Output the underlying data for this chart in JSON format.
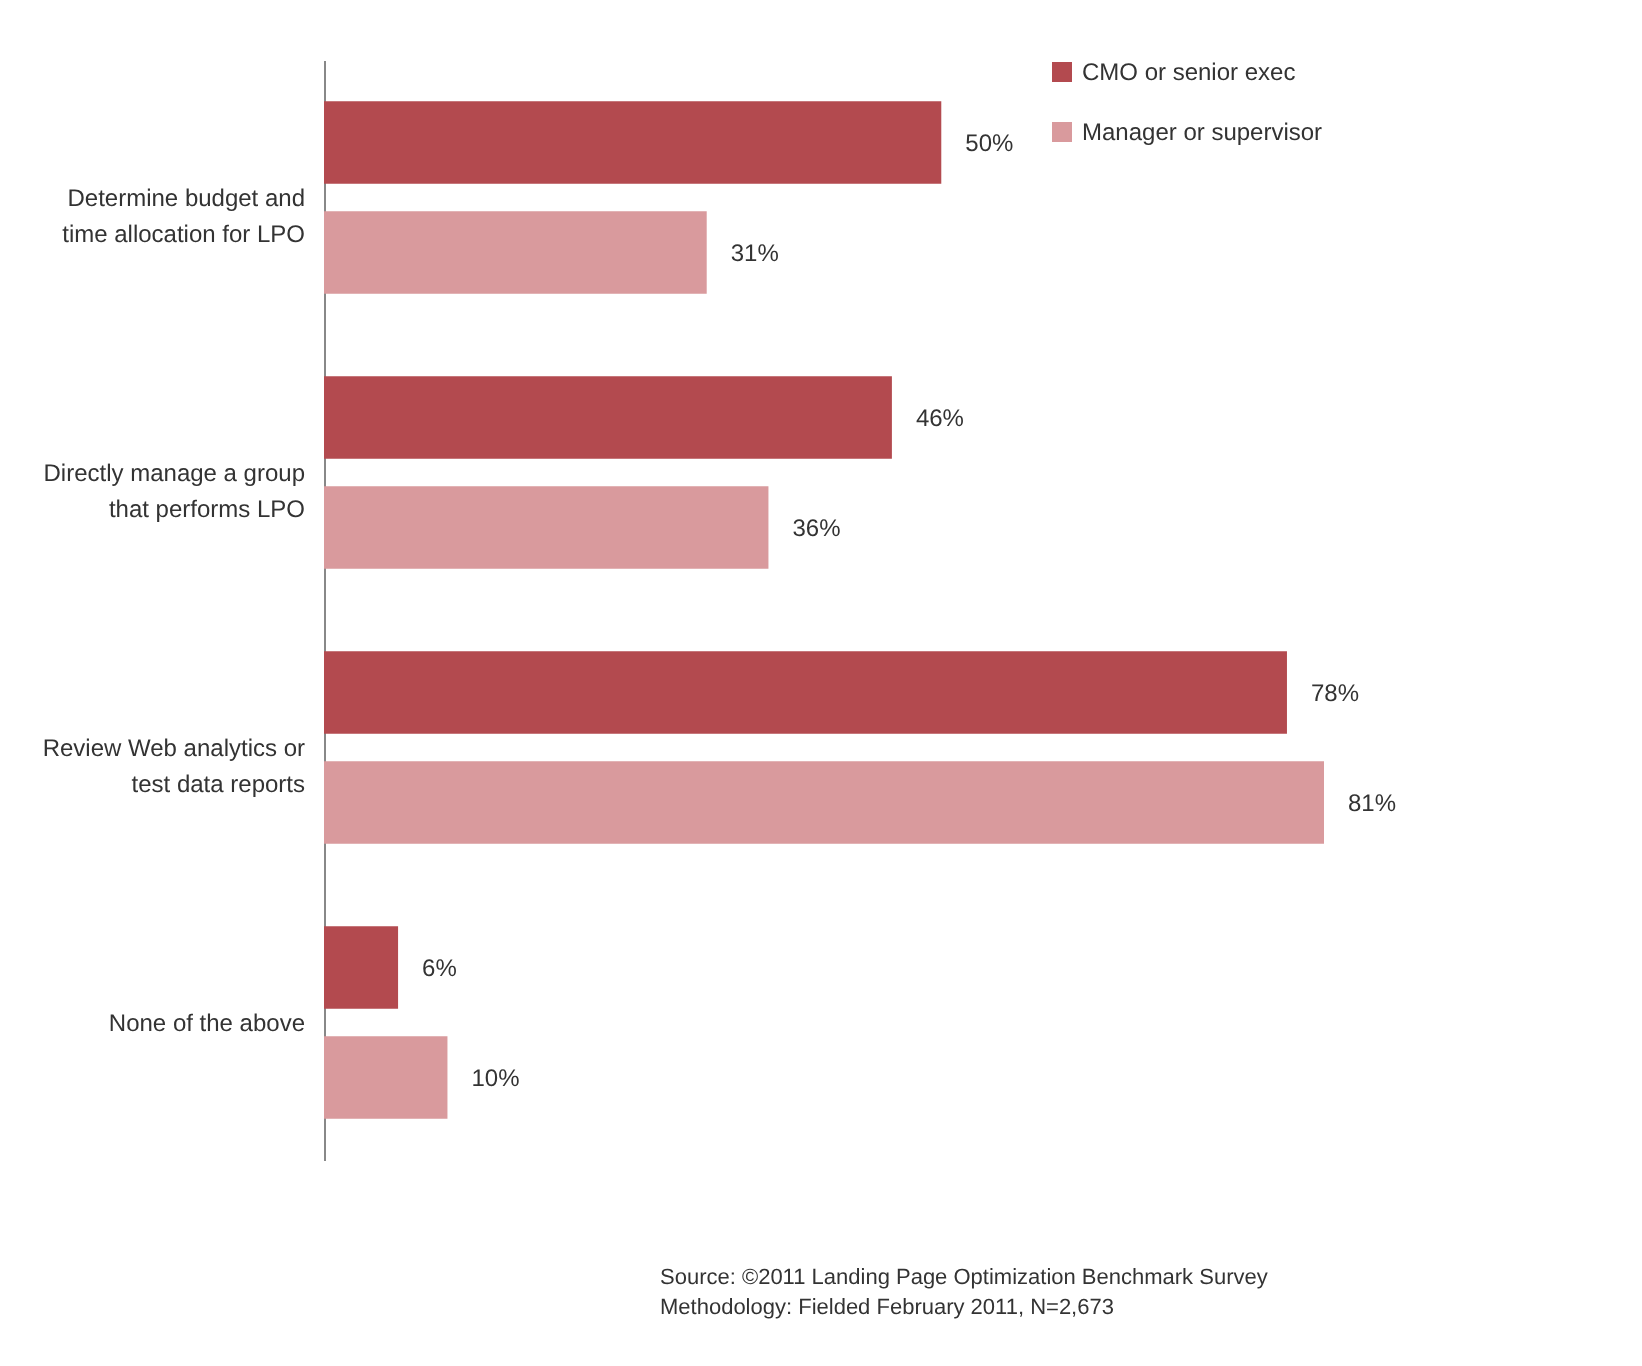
{
  "chart_data": {
    "type": "bar",
    "orientation": "horizontal",
    "categories": [
      "Determine budget and time allocation for LPO",
      "Directly manage a group that performs LPO",
      "Review Web analytics or test data reports",
      "None of the above"
    ],
    "series": [
      {
        "name": "CMO or senior exec",
        "color": "#b34a4f",
        "values": [
          50,
          46,
          78,
          6
        ],
        "value_labels": [
          "50%",
          "46%",
          "78%",
          "6%"
        ]
      },
      {
        "name": "Manager or supervisor",
        "color": "#d99a9d",
        "values": [
          31,
          36,
          81,
          10
        ],
        "value_labels": [
          "31%",
          "36%",
          "81%",
          "10%"
        ]
      }
    ],
    "legend": "top right",
    "grid": false,
    "annotations": [
      "Source: ©2011 Landing Page Optimization Benchmark Survey",
      "Methodology: Fielded February 2011, N=2,673"
    ]
  }
}
